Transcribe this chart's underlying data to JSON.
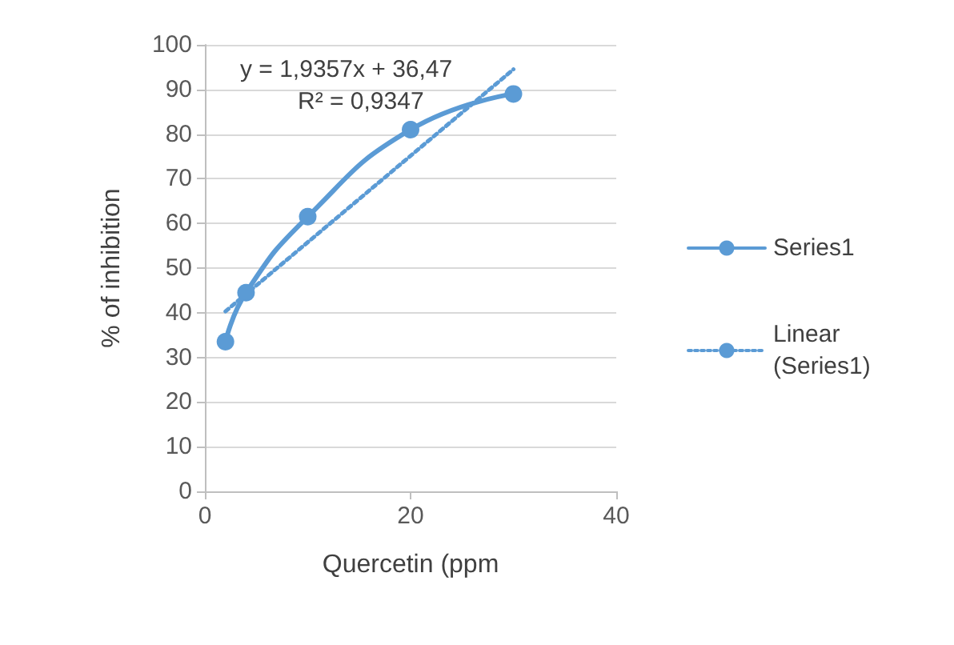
{
  "chart_data": {
    "type": "line",
    "xlabel": "Quercetin (ppm",
    "ylabel": "% of inhibition",
    "annotations": [
      "y = 1,9357x + 36,47",
      "R² = 0,9347"
    ],
    "x": [
      2,
      4,
      10,
      20,
      30
    ],
    "series": [
      {
        "name": "Series1",
        "color": "#5b9bd5",
        "values": [
          33.5,
          44.5,
          61.5,
          81,
          89
        ],
        "marker": "circle",
        "line_style": "solid"
      },
      {
        "name": "Linear (Series1)",
        "color": "#5b9bd5",
        "x": [
          2,
          30
        ],
        "values": [
          40.3,
          94.5
        ],
        "marker": "none",
        "line_style": "dotted"
      }
    ],
    "xlim": [
      0,
      40
    ],
    "xticks": [
      0,
      20,
      40
    ],
    "ylim": [
      0,
      100
    ],
    "yticks": [
      0,
      10,
      20,
      30,
      40,
      50,
      60,
      70,
      80,
      90,
      100
    ],
    "grid": "y",
    "legend": "right"
  }
}
